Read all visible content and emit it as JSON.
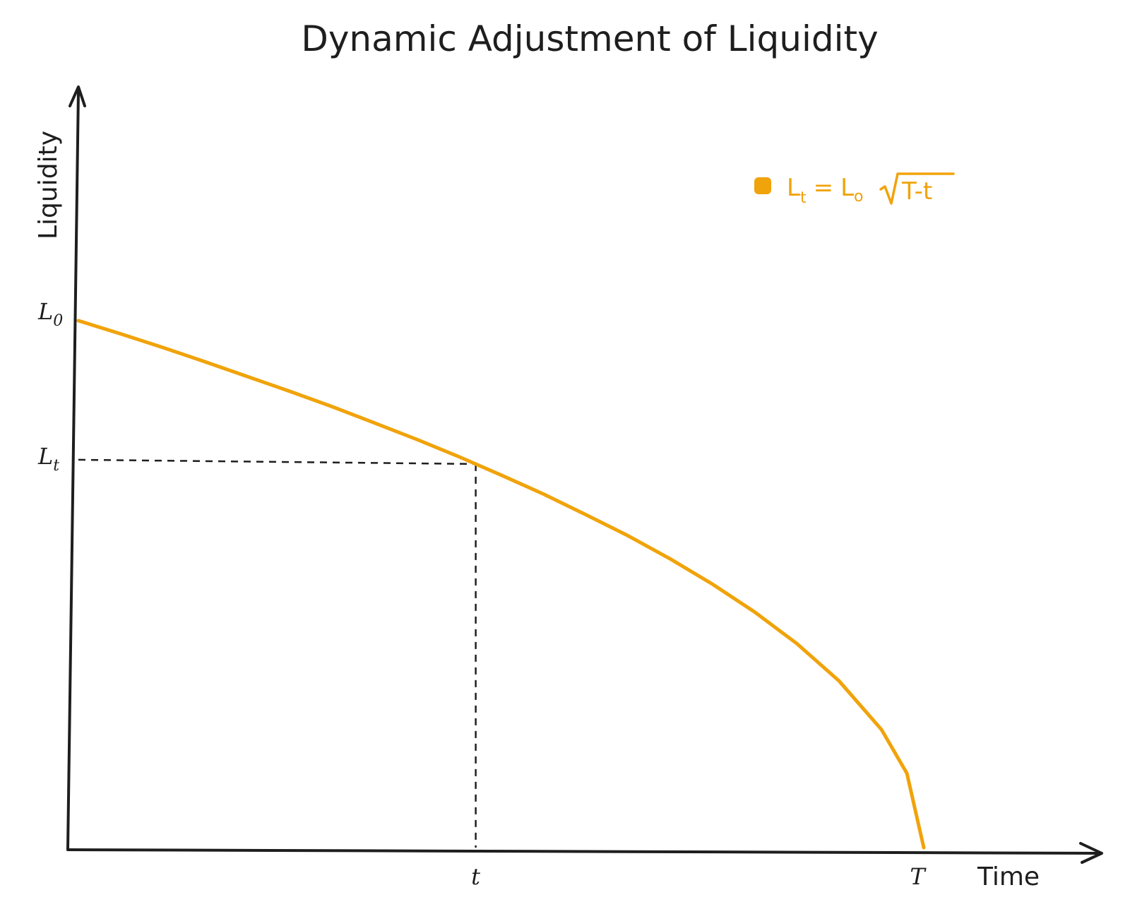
{
  "chart_data": {
    "type": "line",
    "title": "Dynamic Adjustment of Liquidity",
    "xlabel": "Time",
    "ylabel": "Liquidity",
    "x_ticks": [
      {
        "label": "t"
      },
      {
        "label": "T"
      }
    ],
    "y_ticks": [
      {
        "label": "L",
        "sub": "0"
      },
      {
        "label": "L",
        "sub": "t"
      }
    ],
    "series": [
      {
        "name": "L_t = L_0 √(T−t)",
        "legend": {
          "lhs": "L",
          "lhs_sub": "t",
          "equals": "=",
          "rhs": "L",
          "rhs_sub": "o",
          "radicand": "T-t"
        },
        "color": "#f0a30a",
        "x": [
          0,
          0.05,
          0.1,
          0.15,
          0.2,
          0.25,
          0.3,
          0.35,
          0.4,
          0.45,
          0.5,
          0.55,
          0.6,
          0.65,
          0.7,
          0.75,
          0.8,
          0.85,
          0.9,
          0.95,
          0.98,
          1.0
        ],
        "y": [
          1.0,
          0.975,
          0.949,
          0.922,
          0.894,
          0.866,
          0.837,
          0.806,
          0.775,
          0.742,
          0.707,
          0.671,
          0.632,
          0.592,
          0.548,
          0.5,
          0.447,
          0.387,
          0.316,
          0.224,
          0.141,
          0.0
        ]
      }
    ],
    "reference_point": {
      "x": 0.47,
      "y": 0.728
    },
    "xlim": [
      0,
      1.2
    ],
    "ylim": [
      0,
      1.35
    ],
    "grid": false,
    "legend_position": "top-right",
    "colors": {
      "curve": "#f0a30a",
      "axis": "#1e1e1e",
      "guide": "#1e1e1e"
    }
  }
}
